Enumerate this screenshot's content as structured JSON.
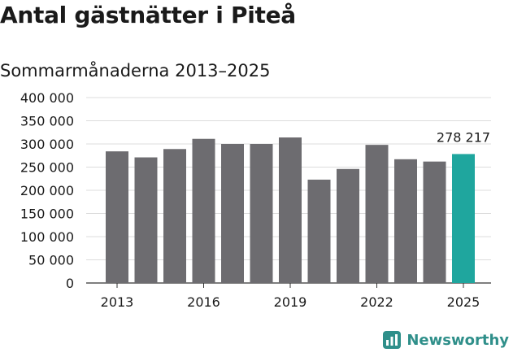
{
  "title": "Antal gästnätter i Piteå",
  "subtitle": "Sommarmånaderna 2013–2025",
  "brand": {
    "name": "Newsworthy",
    "icon": "bar-chart-logo-icon",
    "color": "#2f8f8a"
  },
  "chart_data": {
    "type": "bar",
    "title": "Antal gästnätter i Piteå",
    "subtitle": "Sommarmånaderna 2013–2025",
    "categories": [
      "2013",
      "2014",
      "2015",
      "2016",
      "2017",
      "2018",
      "2019",
      "2020",
      "2021",
      "2022",
      "2023",
      "2024",
      "2025"
    ],
    "values": [
      284000,
      271000,
      289000,
      311000,
      300000,
      300000,
      314000,
      223000,
      246000,
      298000,
      267000,
      262000,
      278217
    ],
    "ylim": [
      0,
      400000
    ],
    "yticks": [
      {
        "value": 0,
        "label": "0"
      },
      {
        "value": 50000,
        "label": "50 000"
      },
      {
        "value": 100000,
        "label": "100 000"
      },
      {
        "value": 150000,
        "label": "150 000"
      },
      {
        "value": 200000,
        "label": "200 000"
      },
      {
        "value": 250000,
        "label": "250 000"
      },
      {
        "value": 300000,
        "label": "300 000"
      },
      {
        "value": 350000,
        "label": "350 000"
      },
      {
        "value": 400000,
        "label": "400 000"
      }
    ],
    "xtick_labels": [
      "2013",
      "2016",
      "2019",
      "2022",
      "2025"
    ],
    "grid": true,
    "colors": {
      "default": "#6d6c70",
      "highlight": "#1fa69e"
    },
    "highlight_index": 12,
    "data_label": {
      "index": 12,
      "text": "278 217"
    }
  }
}
